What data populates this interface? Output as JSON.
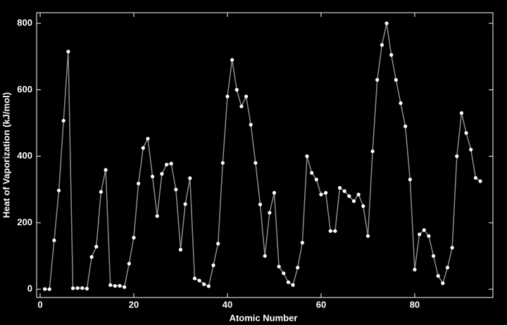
{
  "chart_data": {
    "type": "line",
    "xlabel": "Atomic Number",
    "ylabel": "Heat of Vaporization (kJ/mol)",
    "x": [
      1,
      2,
      3,
      4,
      5,
      6,
      7,
      8,
      9,
      10,
      11,
      12,
      13,
      14,
      15,
      16,
      17,
      18,
      19,
      20,
      21,
      22,
      23,
      24,
      25,
      26,
      27,
      28,
      29,
      30,
      31,
      32,
      33,
      34,
      35,
      36,
      37,
      38,
      39,
      40,
      41,
      42,
      43,
      44,
      45,
      46,
      47,
      48,
      49,
      50,
      51,
      52,
      53,
      54,
      55,
      56,
      57,
      58,
      59,
      60,
      61,
      62,
      63,
      64,
      65,
      66,
      67,
      68,
      69,
      70,
      71,
      72,
      73,
      74,
      75,
      76,
      77,
      78,
      79,
      80,
      81,
      82,
      83,
      84,
      85,
      86,
      87,
      88,
      89,
      90,
      91,
      92,
      93,
      94
    ],
    "values": [
      0.45,
      0.08,
      147,
      297,
      507,
      715,
      2.8,
      3.4,
      3.3,
      1.7,
      97,
      128,
      293,
      359,
      12.4,
      9.8,
      10.2,
      6.4,
      77,
      155,
      318,
      425,
      453,
      339,
      220,
      347,
      375,
      378,
      300,
      119,
      256,
      334,
      32.4,
      26,
      15,
      9,
      72,
      137,
      380,
      580,
      690,
      600,
      550,
      580,
      495,
      380,
      255,
      100,
      230,
      290,
      68,
      48,
      21,
      12.6,
      65,
      140,
      400,
      350,
      330,
      285,
      290,
      175,
      175,
      305,
      295,
      280,
      265,
      285,
      250,
      160,
      415,
      630,
      735,
      800,
      705,
      630,
      560,
      490,
      330,
      59,
      165,
      178,
      160,
      100,
      40,
      18,
      65,
      125,
      400,
      530,
      470,
      420,
      335,
      325
    ],
    "line_color": "#8c8c8c",
    "marker_color": "#ffffff",
    "xlim": [
      -0.75,
      96.7
    ],
    "ylim": [
      -25,
      832
    ],
    "xticks": [
      0,
      20,
      40,
      60,
      80
    ],
    "yticks": [
      0,
      200,
      400,
      600,
      800
    ]
  }
}
